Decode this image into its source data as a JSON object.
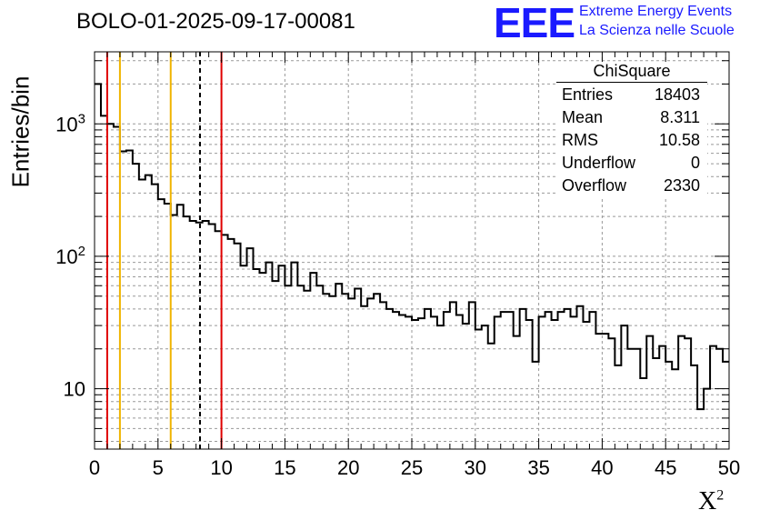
{
  "title": "BOLO-01-2025-09-17-00081",
  "logo": {
    "mark": "EEE",
    "line1": "Extreme Energy Events",
    "line2": "La Scienza nelle Scuole",
    "color": "#1a1aff"
  },
  "stats": {
    "title": "ChiSquare",
    "rows": [
      {
        "label": "Entries",
        "value": "18403"
      },
      {
        "label": "Mean",
        "value": "8.311"
      },
      {
        "label": "RMS",
        "value": "10.58"
      },
      {
        "label": "Underflow",
        "value": "0"
      },
      {
        "label": "Overflow",
        "value": "2330"
      }
    ]
  },
  "chart_data": {
    "type": "histogram",
    "title": "BOLO-01-2025-09-17-00081",
    "xlabel": "X",
    "xlabel_superscript": "2",
    "ylabel": "Entries/bin",
    "yscale": "log",
    "xlim": [
      0,
      50
    ],
    "ylim": [
      3.5,
      3500
    ],
    "grid": true,
    "x_ticks": [
      "0",
      "5",
      "10",
      "15",
      "20",
      "25",
      "30",
      "35",
      "40",
      "45",
      "50"
    ],
    "y_ticks": [
      {
        "value": 10,
        "base": "10",
        "exp": ""
      },
      {
        "value": 100,
        "base": "10",
        "exp": "2"
      },
      {
        "value": 1000,
        "base": "10",
        "exp": "3"
      }
    ],
    "bin_width": 0.5,
    "values": [
      2000,
      1150,
      1000,
      950,
      620,
      630,
      500,
      380,
      410,
      350,
      270,
      250,
      205,
      245,
      200,
      185,
      180,
      185,
      175,
      155,
      145,
      135,
      125,
      85,
      115,
      80,
      75,
      90,
      65,
      85,
      60,
      90,
      60,
      55,
      75,
      60,
      52,
      50,
      62,
      52,
      48,
      57,
      42,
      48,
      52,
      45,
      40,
      38,
      36,
      35,
      33,
      34,
      40,
      35,
      30,
      38,
      45,
      36,
      31,
      45,
      28,
      30,
      22,
      35,
      38,
      38,
      25,
      40,
      33,
      16,
      35,
      38,
      33,
      38,
      40,
      35,
      42,
      32,
      38,
      26,
      26,
      24,
      15,
      30,
      20,
      20,
      12,
      25,
      17,
      21,
      16,
      14,
      25,
      24,
      15,
      7,
      10,
      21,
      20,
      16
    ],
    "markers": [
      {
        "x": 1,
        "color": "#e00000",
        "style": "solid"
      },
      {
        "x": 2,
        "color": "#f0b400",
        "style": "solid"
      },
      {
        "x": 6,
        "color": "#f0b400",
        "style": "solid"
      },
      {
        "x": 8.311,
        "color": "#000000",
        "style": "dashed"
      },
      {
        "x": 10,
        "color": "#e00000",
        "style": "solid"
      }
    ]
  }
}
